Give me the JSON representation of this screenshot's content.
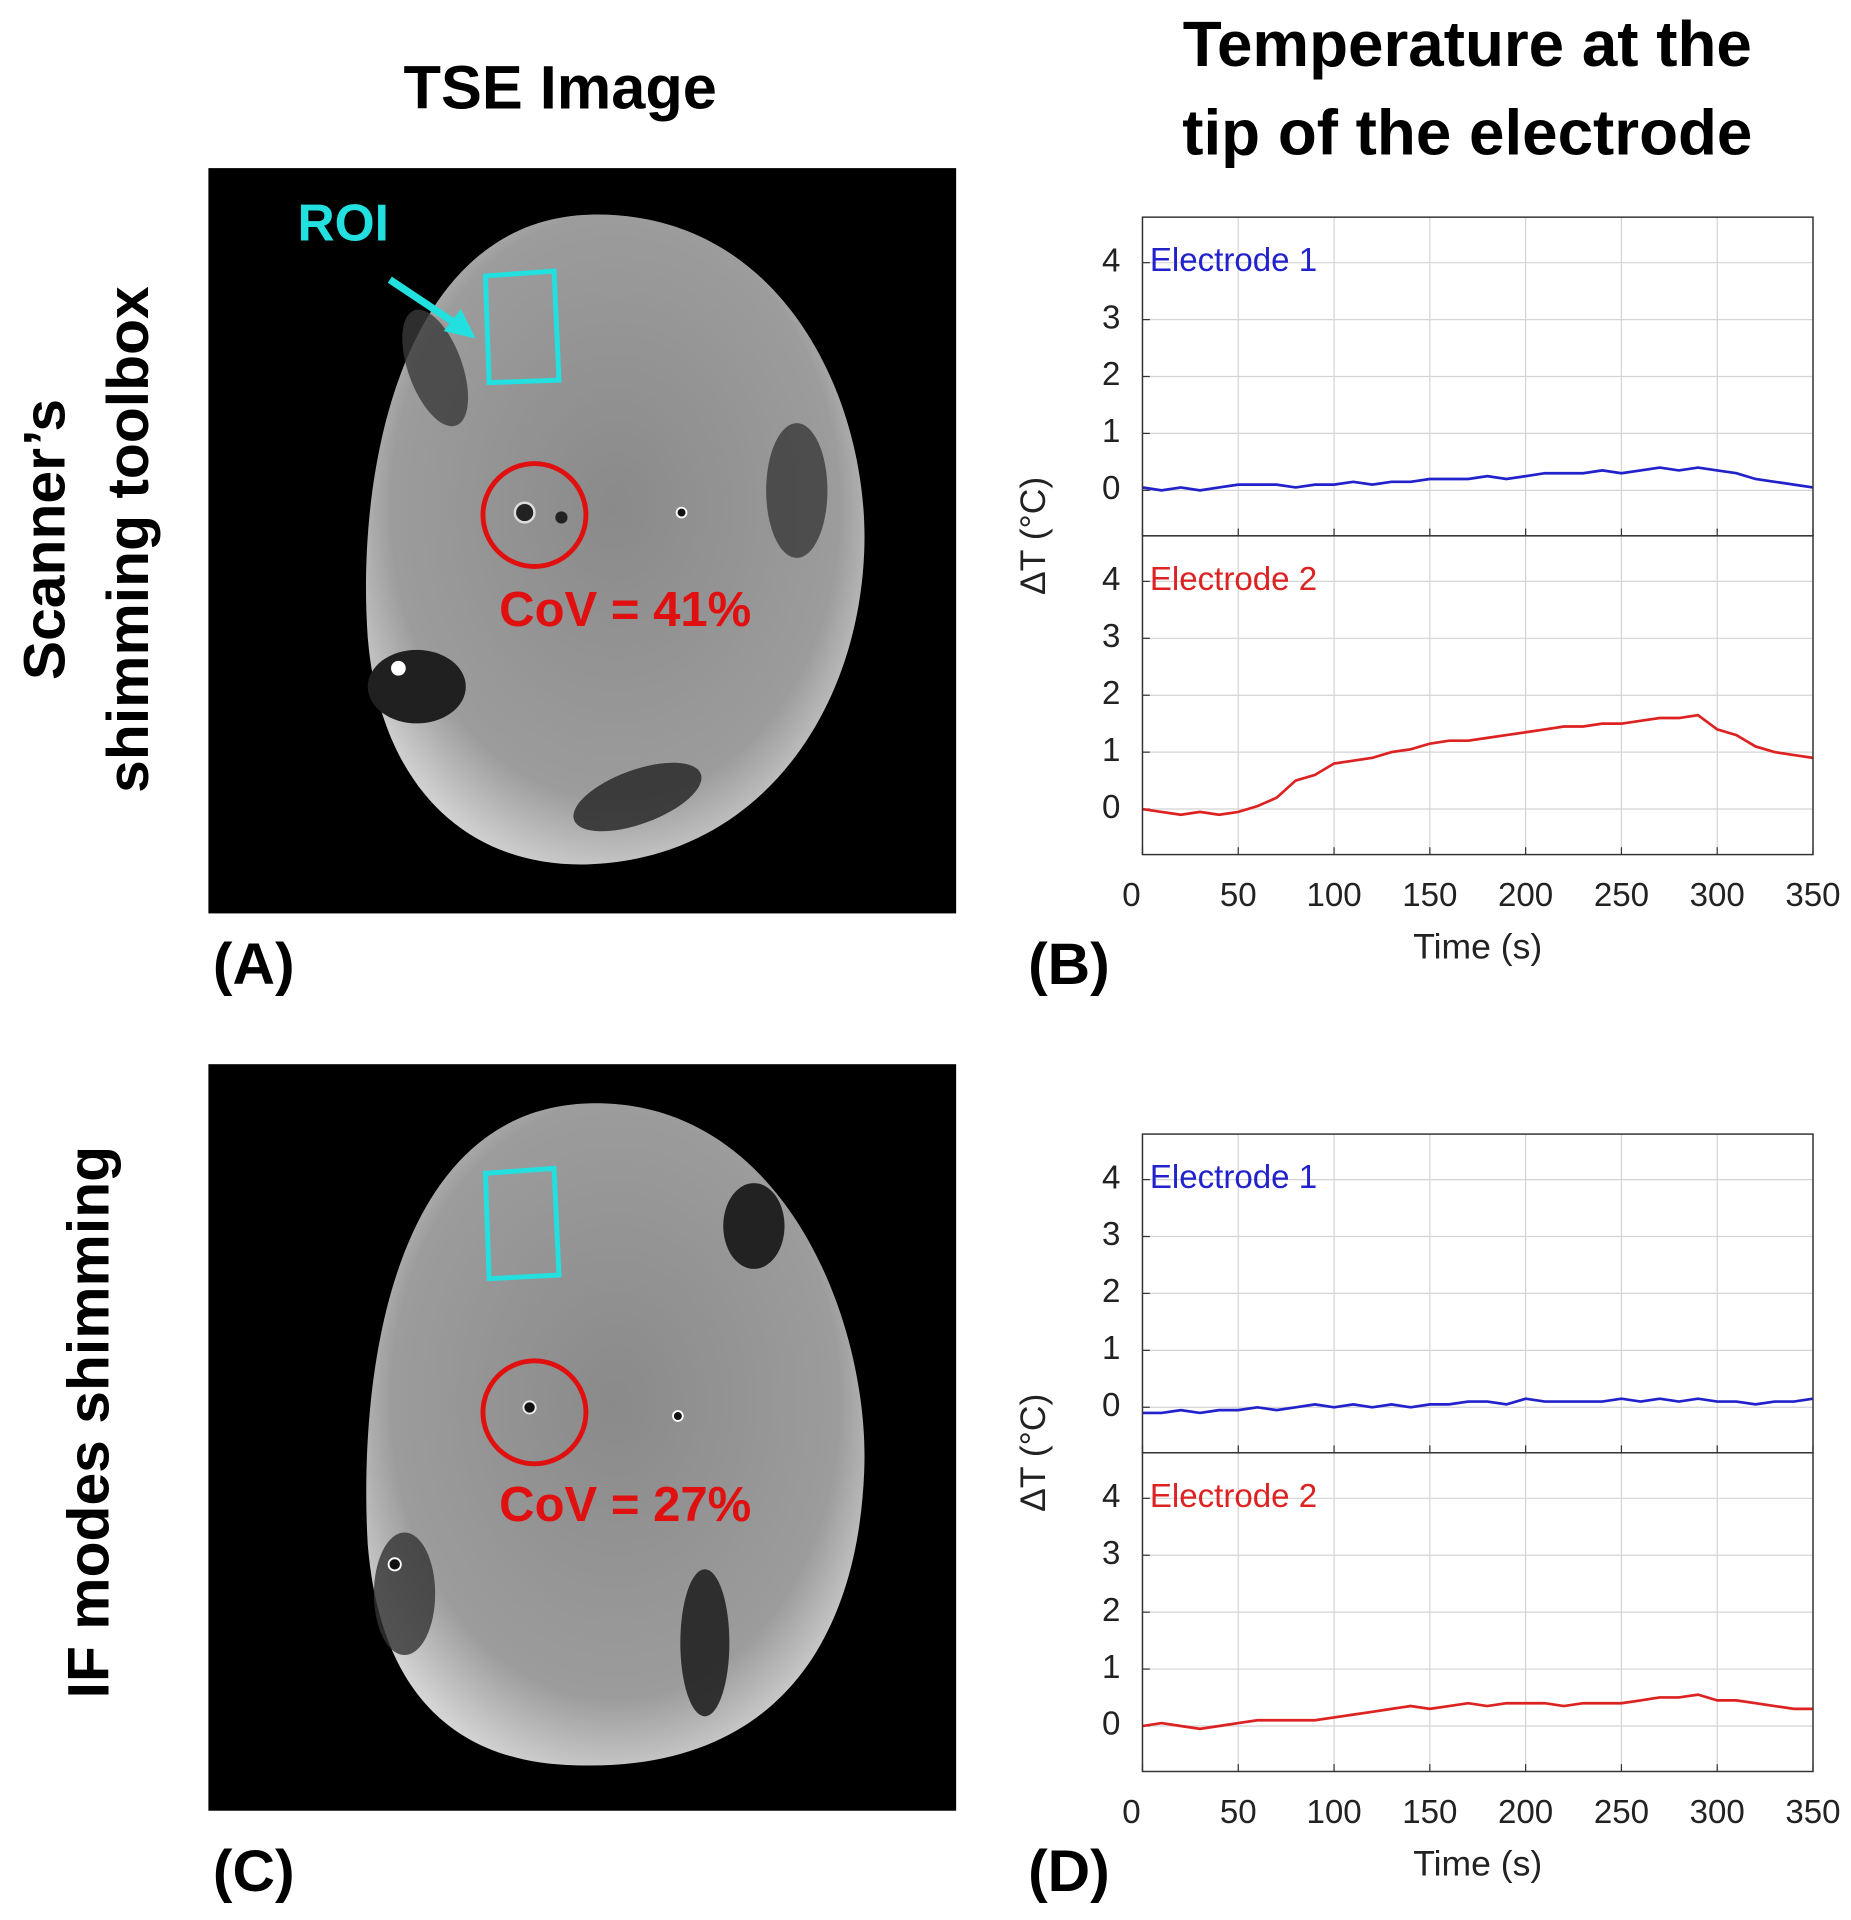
{
  "header": {
    "image_title": "TSE Image",
    "chart_title_lines": [
      "Temperature at the",
      "tip of the electrode"
    ]
  },
  "rows": [
    {
      "label_lines": [
        "Scanner’s",
        "shimming toolbox"
      ],
      "image_panel": "(A)",
      "roi_label": "ROI",
      "cov_label": "CoV = 41%",
      "chart_panel": "(B)"
    },
    {
      "label_lines": [
        "IF modes shimming"
      ],
      "image_panel": "(C)",
      "cov_label": "CoV = 27%",
      "chart_panel": "(D)"
    }
  ],
  "chart_data": [
    {
      "type": "line",
      "ylabel": "ΔT (°C)",
      "xlabel": "Time (s)",
      "xlim": [
        0,
        350
      ],
      "xticks": [
        0,
        50,
        100,
        150,
        200,
        250,
        300,
        350
      ],
      "grid": true,
      "x": [
        0,
        10,
        20,
        30,
        40,
        50,
        60,
        70,
        80,
        90,
        100,
        110,
        120,
        130,
        140,
        150,
        160,
        170,
        180,
        190,
        200,
        210,
        220,
        230,
        240,
        250,
        260,
        270,
        280,
        290,
        300,
        310,
        320,
        330,
        340,
        350
      ],
      "panels": [
        {
          "ylim": [
            -0.8,
            4.8
          ],
          "yticks": [
            0,
            1,
            2,
            3,
            4
          ],
          "series": [
            {
              "name": "Electrode 1",
              "color": "#2222cc",
              "values": [
                0.05,
                0.0,
                0.05,
                0.0,
                0.05,
                0.1,
                0.1,
                0.1,
                0.05,
                0.1,
                0.1,
                0.15,
                0.1,
                0.15,
                0.15,
                0.2,
                0.2,
                0.2,
                0.25,
                0.2,
                0.25,
                0.3,
                0.3,
                0.3,
                0.35,
                0.3,
                0.35,
                0.4,
                0.35,
                0.4,
                0.35,
                0.3,
                0.2,
                0.15,
                0.1,
                0.05
              ]
            }
          ]
        },
        {
          "ylim": [
            -0.8,
            4.8
          ],
          "yticks": [
            0,
            1,
            2,
            3,
            4
          ],
          "series": [
            {
              "name": "Electrode 2",
              "color": "#dd2222",
              "values": [
                0,
                -0.05,
                -0.1,
                -0.05,
                -0.1,
                -0.05,
                0.05,
                0.2,
                0.5,
                0.6,
                0.8,
                0.85,
                0.9,
                1.0,
                1.05,
                1.15,
                1.2,
                1.2,
                1.25,
                1.3,
                1.35,
                1.4,
                1.45,
                1.45,
                1.5,
                1.5,
                1.55,
                1.6,
                1.6,
                1.65,
                1.4,
                1.3,
                1.1,
                1.0,
                0.95,
                0.9
              ]
            }
          ]
        }
      ]
    },
    {
      "type": "line",
      "ylabel": "ΔT (°C)",
      "xlabel": "Time (s)",
      "xlim": [
        0,
        350
      ],
      "xticks": [
        0,
        50,
        100,
        150,
        200,
        250,
        300,
        350
      ],
      "grid": true,
      "x": [
        0,
        10,
        20,
        30,
        40,
        50,
        60,
        70,
        80,
        90,
        100,
        110,
        120,
        130,
        140,
        150,
        160,
        170,
        180,
        190,
        200,
        210,
        220,
        230,
        240,
        250,
        260,
        270,
        280,
        290,
        300,
        310,
        320,
        330,
        340,
        350
      ],
      "panels": [
        {
          "ylim": [
            -0.8,
            4.8
          ],
          "yticks": [
            0,
            1,
            2,
            3,
            4
          ],
          "series": [
            {
              "name": "Electrode 1",
              "color": "#2222cc",
              "values": [
                -0.1,
                -0.1,
                -0.05,
                -0.1,
                -0.05,
                -0.05,
                0,
                -0.05,
                0,
                0.05,
                0,
                0.05,
                0,
                0.05,
                0,
                0.05,
                0.05,
                0.1,
                0.1,
                0.05,
                0.15,
                0.1,
                0.1,
                0.1,
                0.1,
                0.15,
                0.1,
                0.15,
                0.1,
                0.15,
                0.1,
                0.1,
                0.05,
                0.1,
                0.1,
                0.15
              ]
            }
          ]
        },
        {
          "ylim": [
            -0.8,
            4.8
          ],
          "yticks": [
            0,
            1,
            2,
            3,
            4
          ],
          "series": [
            {
              "name": "Electrode 2",
              "color": "#dd2222",
              "values": [
                0,
                0.05,
                0,
                -0.05,
                0,
                0.05,
                0.1,
                0.1,
                0.1,
                0.1,
                0.15,
                0.2,
                0.25,
                0.3,
                0.35,
                0.3,
                0.35,
                0.4,
                0.35,
                0.4,
                0.4,
                0.4,
                0.35,
                0.4,
                0.4,
                0.4,
                0.45,
                0.5,
                0.5,
                0.55,
                0.45,
                0.45,
                0.4,
                0.35,
                0.3,
                0.3
              ]
            }
          ]
        }
      ]
    }
  ]
}
